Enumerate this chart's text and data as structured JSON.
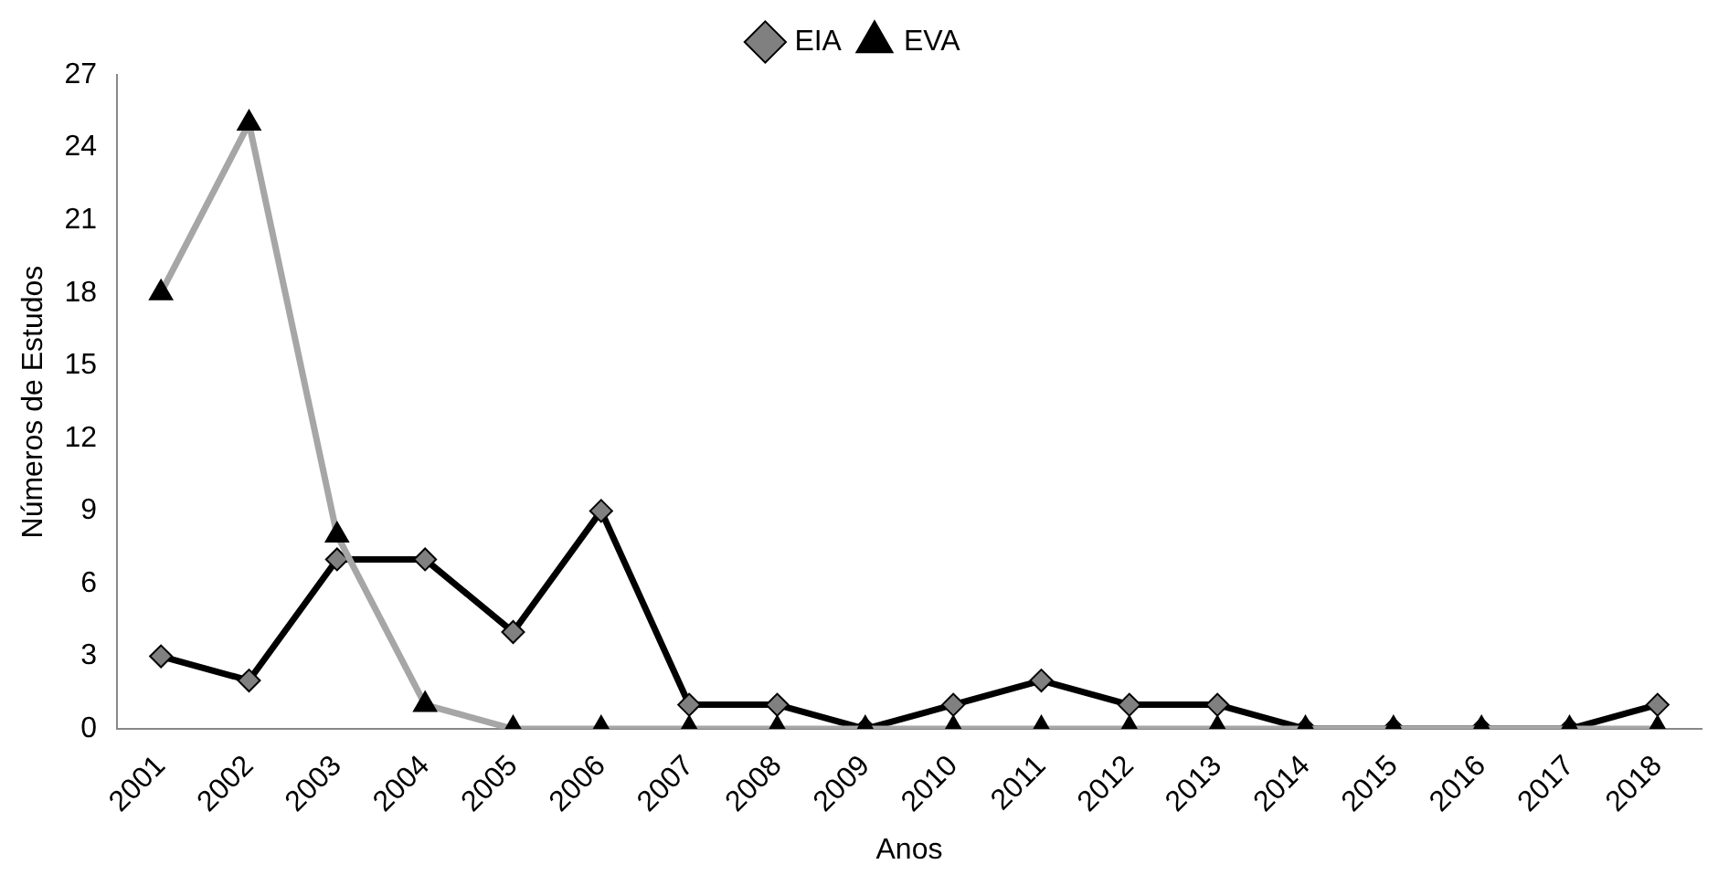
{
  "chart_data": {
    "type": "line",
    "xlabel": "Anos",
    "ylabel": "Números de Estudos",
    "categories": [
      "2001",
      "2002",
      "2003",
      "2004",
      "2005",
      "2006",
      "2007",
      "2008",
      "2009",
      "2010",
      "2011",
      "2012",
      "2013",
      "2014",
      "2015",
      "2016",
      "2017",
      "2018"
    ],
    "series": [
      {
        "name": "EIA",
        "color": "#000000",
        "marker": "diamond",
        "values": [
          3,
          2,
          7,
          7,
          4,
          9,
          1,
          1,
          0,
          1,
          2,
          1,
          1,
          0,
          0,
          0,
          0,
          1
        ]
      },
      {
        "name": "EVA",
        "color": "#a6a6a6",
        "marker": "triangle",
        "values": [
          18,
          25,
          8,
          1,
          0,
          0,
          0,
          0,
          0,
          0,
          0,
          0,
          0,
          0,
          0,
          0,
          0,
          0
        ]
      }
    ],
    "ylim": [
      0,
      27
    ],
    "yticks": [
      0,
      3,
      6,
      9,
      12,
      15,
      18,
      21,
      24,
      27
    ],
    "grid": false,
    "legend": "top"
  }
}
